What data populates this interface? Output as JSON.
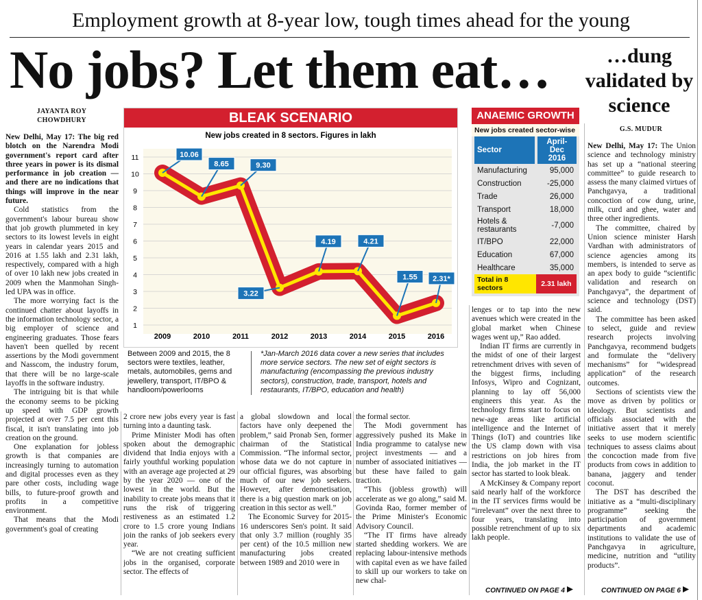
{
  "kicker": "Employment growth at 8-year low, tough times ahead for the young",
  "headline": "No jobs? Let them eat…",
  "main_story": {
    "byline": "JAYANTA ROY CHOWDHURY",
    "dateline": "New Delhi, May 17:",
    "lead": "The big red blotch on the Narendra Modi government's report card after three years in power is its dismal performance in job creation — and there are no indications that things will improve in the near future.",
    "columns": [
      [
        "Cold statistics from the government's labour bureau show that job growth plummeted in key sectors to its lowest levels in eight years in calendar years 2015 and 2016 at 1.55 lakh and 2.31 lakh, respectively, compared with a high of over 10 lakh new jobs created in 2009 when the Manmohan Singh-led UPA was in office.",
        "The more worrying fact is the continued chatter about layoffs in the information technology sector, a big employer of science and engineering graduates. Those fears haven't been quelled by recent assertions by the Modi government and Nasscom, the industry forum, that there will be no large-scale layoffs in the software industry.",
        "The intriguing bit is that while the economy seems to be picking up speed with GDP growth projected at over 7.5 per cent this fiscal, it isn't translating into job creation on the ground.",
        "One explanation for jobless growth is that companies are increasingly turning to automation and digital processes even as they pare other costs, including wage bills, to future-proof growth and profits in a competitive environment.",
        "That means that the Modi government's goal of creating"
      ],
      [
        "2 crore new jobs every year is fast turning into a daunting task.",
        "Prime Minister Modi has often spoken about the demographic dividend that India enjoys with a fairly youthful working population with an average age projected at 29 by the year 2020 — one of the lowest in the world. But the inability to create jobs means that it runs the risk of triggering restiveness as an estimated 1.2 crore to 1.5 crore young Indians join the ranks of job seekers every year.",
        "“We are not creating sufficient jobs in the organised, corporate sector. The effects of"
      ],
      [
        "a global slowdown and local factors have only deepened the problem,” said Pronab Sen, former chairman of the Statistical Commission. “The informal sector, whose data we do not capture in our official figures, was absorbing much of our new job seekers. However, after demonetisation, there is a big question mark on job creation in this sector as well.”",
        "The Economic Survey for 2015-16 underscores Sen's point. It said that only 3.7 million (roughly 35 per cent) of the 10.5 million new manufacturing jobs created between 1989 and 2010 were in"
      ],
      [
        "the formal sector.",
        "The Modi government has aggressively pushed its Make in India programme to catalyse new project investments — and a number of associated initiatives — but these have failed to gain traction.",
        "“This (jobless growth) will accelerate as we go along,” said M. Govinda Rao, former member of the Prime Minister's Economic Advisory Council.",
        "“The IT firms have already started shedding workers. We are replacing labour-intensive methods with capital even as we have failed to skill up our workers to take on new chal-"
      ],
      [
        "lenges or to tap into the new avenues which were created in the global market when Chinese wages went up,” Rao added.",
        "Indian IT firms are currently in the midst of one of their largest retrenchment drives with seven of the biggest firms, including Infosys, Wipro and Cognizant, planning to lay off 56,000 engineers this year. As the technology firms start to focus on new-age areas like artificial intelligence and the Internet of Things (IoT) and countries like the US clamp down with visa restrictions on job hires from India, the job market in the IT sector has started to look bleak.",
        "A McKinsey & Company report said nearly half of the workforce in the IT services firms would be “irrelevant” over the next three to four years, translating into possible retrenchment of up to six lakh people."
      ]
    ],
    "continued": "CONTINUED ON PAGE 4"
  },
  "chart_data": {
    "type": "line",
    "title": "BLEAK SCENARIO",
    "subtitle": "New jobs created in 8 sectors. Figures in lakh",
    "categories": [
      "2009",
      "2010",
      "2011",
      "2012",
      "2013",
      "2014",
      "2015",
      "2016"
    ],
    "values": [
      10.06,
      8.65,
      9.3,
      3.22,
      4.19,
      4.21,
      1.55,
      2.31
    ],
    "value_labels": [
      "10.06",
      "8.65",
      "9.30",
      "3.22",
      "4.19",
      "4.21",
      "1.55",
      "2.31*"
    ],
    "ylim": [
      1,
      11
    ],
    "yticks": [
      1,
      2,
      3,
      4,
      5,
      6,
      7,
      8,
      9,
      10,
      11
    ],
    "grid": true,
    "color": "#d3202f",
    "annotations": [
      "Between 2009 and 2015, the 8 sectors were textiles, leather, metals, automobiles, gems and jewellery, transport, IT/BPO & handloom/powerlooms",
      "*Jan-March 2016 data cover a new series that includes more service sectors. The new set of eight sectors is manufacturing (encompassing the previous industry sectors), construction, trade, transport, hotels and restaurants, IT/BPO, education and health)"
    ]
  },
  "table": {
    "title": "ANAEMIC GROWTH",
    "subtitle": "New jobs created sector-wise",
    "header": [
      "Sector",
      "April-Dec 2016"
    ],
    "rows": [
      [
        "Manufacturing",
        "95,000"
      ],
      [
        "Construction",
        "-25,000"
      ],
      [
        "Trade",
        "26,000"
      ],
      [
        "Transport",
        "18,000"
      ],
      [
        "Hotels & restaurants",
        "-7,000"
      ],
      [
        "IT/BPO",
        "22,000"
      ],
      [
        "Education",
        "67,000"
      ],
      [
        "Healthcare",
        "35,000"
      ]
    ],
    "total": [
      "Total in 8 sectors",
      "2.31 lakh"
    ]
  },
  "side_story": {
    "headline": "…dung validated by science",
    "byline": "G.S. MUDUR",
    "dateline": "New Delhi, May 17:",
    "paragraphs": [
      "The Union science and technology ministry has set up a “national steering committee” to guide research to assess the many claimed virtues of Panchgavya, a traditional concoction of cow dung, urine, milk, curd and ghee, water and three other ingredients.",
      "The committee, chaired by Union science minister Harsh Vardhan with administrators of science agencies among its members, is intended to serve as an apex body to guide “scientific validation and research on Panchgavya”, the department of science and technology (DST) said.",
      "The committee has been asked to select, guide and review research projects involving Panchgavya, recommend budgets and formulate the “delivery mechanisms” for “widespread application” of the research outcomes.",
      "Sections of scientists view the move as driven by politics or ideology. But scientists and officials associated with the initiative assert that it merely seeks to use modern scientific techniques to assess claims about the concoction made from five products from cows in addition to banana, jaggery and tender coconut.",
      "The DST has described the initiative as a “multi-disciplinary programme” seeking the participation of government departments and academic institutions to validate the use of Panchgavya in agriculture, medicine, nutrition and “utility products”."
    ],
    "continued": "CONTINUED ON PAGE 6"
  }
}
